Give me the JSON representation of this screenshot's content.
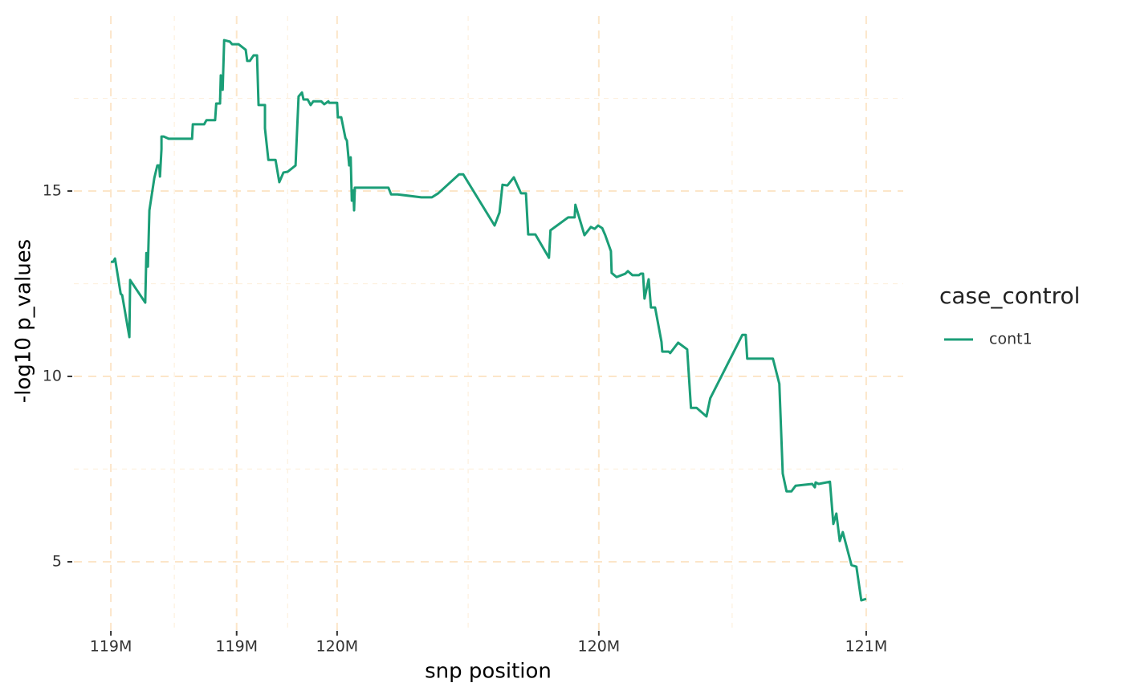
{
  "chart_data": {
    "type": "line",
    "x_label": "snp position",
    "y_label": "-log10 p_values",
    "legend_title": "case_control",
    "legend": "right",
    "grid": true,
    "xlim": [
      118.902,
      121.098
    ],
    "ylim": [
      3.16,
      19.72
    ],
    "xticks": [
      {
        "value": 119.0,
        "label": "119M"
      },
      {
        "value": 119.333,
        "label": "119M"
      },
      {
        "value": 119.599,
        "label": "120M"
      },
      {
        "value": 120.292,
        "label": "120M"
      },
      {
        "value": 121.0,
        "label": "121M"
      }
    ],
    "xminor": [
      119.168,
      119.468,
      119.946,
      120.645
    ],
    "yticks": [
      5,
      10,
      15
    ],
    "yminor": [
      7.5,
      12.5,
      17.5
    ],
    "x": [
      119.0,
      119.006,
      119.011,
      119.026,
      119.03,
      119.049,
      119.051,
      119.091,
      119.094,
      119.098,
      119.102,
      119.115,
      119.123,
      119.128,
      119.13,
      119.134,
      119.134,
      119.14,
      119.153,
      119.215,
      119.217,
      119.247,
      119.253,
      119.276,
      119.279,
      119.289,
      119.291,
      119.296,
      119.3,
      119.315,
      119.321,
      119.338,
      119.357,
      119.361,
      119.368,
      119.378,
      119.387,
      119.391,
      119.408,
      119.408,
      119.417,
      119.436,
      119.446,
      119.457,
      119.468,
      119.489,
      119.497,
      119.506,
      119.51,
      119.521,
      119.529,
      119.536,
      119.557,
      119.565,
      119.576,
      119.578,
      119.599,
      119.601,
      119.61,
      119.621,
      119.625,
      119.631,
      119.635,
      119.638,
      119.642,
      119.644,
      119.646,
      119.735,
      119.742,
      119.759,
      119.822,
      119.85,
      119.867,
      119.922,
      119.933,
      120.016,
      120.029,
      120.037,
      120.05,
      120.067,
      120.086,
      120.099,
      120.105,
      120.124,
      120.16,
      120.164,
      120.211,
      120.228,
      120.23,
      120.254,
      120.271,
      120.281,
      120.29,
      120.301,
      120.309,
      120.324,
      120.326,
      120.339,
      120.362,
      120.369,
      120.381,
      120.398,
      120.403,
      120.409,
      120.413,
      120.424,
      120.43,
      120.441,
      120.458,
      120.46,
      120.477,
      120.481,
      120.502,
      120.526,
      120.536,
      120.551,
      120.577,
      120.587,
      120.672,
      120.681,
      120.685,
      120.753,
      120.77,
      120.779,
      120.789,
      120.802,
      120.813,
      120.857,
      120.864,
      120.866,
      120.874,
      120.904,
      120.913,
      120.921,
      120.93,
      120.938,
      120.961,
      120.974,
      120.987,
      121.0
    ],
    "series": [
      {
        "name": "cont1",
        "color": "#1b9e77",
        "values": [
          13.09,
          13.09,
          13.18,
          12.23,
          12.19,
          11.06,
          12.6,
          11.99,
          13.33,
          12.96,
          14.48,
          15.35,
          15.69,
          15.69,
          15.39,
          16.13,
          16.47,
          16.47,
          16.41,
          16.41,
          16.8,
          16.8,
          16.91,
          16.91,
          17.36,
          17.36,
          18.12,
          17.73,
          19.07,
          19.03,
          18.96,
          18.96,
          18.81,
          18.51,
          18.51,
          18.66,
          18.66,
          17.32,
          17.32,
          16.69,
          15.84,
          15.84,
          15.24,
          15.5,
          15.52,
          15.69,
          17.55,
          17.66,
          17.47,
          17.47,
          17.32,
          17.42,
          17.42,
          17.34,
          17.42,
          17.38,
          17.38,
          16.99,
          16.99,
          16.43,
          16.36,
          15.69,
          15.91,
          14.74,
          15.02,
          14.48,
          15.09,
          15.09,
          14.91,
          14.91,
          14.83,
          14.83,
          14.94,
          15.45,
          15.45,
          14.07,
          14.42,
          15.17,
          15.15,
          15.37,
          14.94,
          14.94,
          13.83,
          13.83,
          13.2,
          13.94,
          14.29,
          14.29,
          14.63,
          13.81,
          14.03,
          13.98,
          14.07,
          14.0,
          13.81,
          13.38,
          12.79,
          12.68,
          12.77,
          12.84,
          12.73,
          12.73,
          12.77,
          12.77,
          12.1,
          12.62,
          11.86,
          11.86,
          10.93,
          10.67,
          10.67,
          10.63,
          10.91,
          10.73,
          9.15,
          9.15,
          8.92,
          9.41,
          11.12,
          11.12,
          10.48,
          10.48,
          9.8,
          7.38,
          6.9,
          6.9,
          7.05,
          7.1,
          7.01,
          7.14,
          7.1,
          7.16,
          6.02,
          6.3,
          5.56,
          5.8,
          4.91,
          4.87,
          3.96,
          4.0
        ]
      }
    ]
  }
}
